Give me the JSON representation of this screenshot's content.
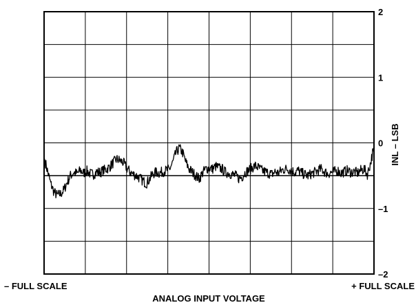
{
  "chart_data": {
    "type": "line",
    "title": "",
    "xlabel": "ANALOG INPUT VOLTAGE",
    "ylabel": "INL – LSB",
    "x_tick_left": "– FULL SCALE",
    "x_tick_right": "+ FULL SCALE",
    "y_ticks": [
      "2",
      "1",
      "0",
      "–1",
      "–2"
    ],
    "ylim": [
      -2,
      2
    ],
    "grid": true,
    "x_divisions": 8,
    "y_divisions": 8,
    "series": [
      {
        "name": "",
        "points": [
          [
            0.0,
            -0.22
          ],
          [
            0.01,
            -0.42
          ],
          [
            0.02,
            -0.62
          ],
          [
            0.03,
            -0.75
          ],
          [
            0.04,
            -0.8
          ],
          [
            0.05,
            -0.78
          ],
          [
            0.06,
            -0.72
          ],
          [
            0.07,
            -0.6
          ],
          [
            0.08,
            -0.5
          ],
          [
            0.09,
            -0.45
          ],
          [
            0.1,
            -0.47
          ],
          [
            0.11,
            -0.42
          ],
          [
            0.12,
            -0.46
          ],
          [
            0.13,
            -0.43
          ],
          [
            0.14,
            -0.47
          ],
          [
            0.15,
            -0.48
          ],
          [
            0.16,
            -0.44
          ],
          [
            0.17,
            -0.45
          ],
          [
            0.18,
            -0.42
          ],
          [
            0.19,
            -0.4
          ],
          [
            0.2,
            -0.36
          ],
          [
            0.21,
            -0.3
          ],
          [
            0.22,
            -0.25
          ],
          [
            0.23,
            -0.27
          ],
          [
            0.24,
            -0.3
          ],
          [
            0.25,
            -0.38
          ],
          [
            0.26,
            -0.44
          ],
          [
            0.27,
            -0.48
          ],
          [
            0.28,
            -0.5
          ],
          [
            0.29,
            -0.54
          ],
          [
            0.3,
            -0.58
          ],
          [
            0.31,
            -0.62
          ],
          [
            0.32,
            -0.55
          ],
          [
            0.33,
            -0.47
          ],
          [
            0.34,
            -0.45
          ],
          [
            0.35,
            -0.46
          ],
          [
            0.36,
            -0.44
          ],
          [
            0.37,
            -0.42
          ],
          [
            0.38,
            -0.4
          ],
          [
            0.39,
            -0.3
          ],
          [
            0.4,
            -0.15
          ],
          [
            0.41,
            -0.08
          ],
          [
            0.42,
            -0.15
          ],
          [
            0.43,
            -0.3
          ],
          [
            0.44,
            -0.4
          ],
          [
            0.45,
            -0.45
          ],
          [
            0.46,
            -0.5
          ],
          [
            0.47,
            -0.55
          ],
          [
            0.48,
            -0.46
          ],
          [
            0.49,
            -0.4
          ],
          [
            0.5,
            -0.38
          ],
          [
            0.51,
            -0.4
          ],
          [
            0.52,
            -0.36
          ],
          [
            0.53,
            -0.38
          ],
          [
            0.54,
            -0.4
          ],
          [
            0.55,
            -0.45
          ],
          [
            0.56,
            -0.46
          ],
          [
            0.57,
            -0.48
          ],
          [
            0.58,
            -0.5
          ],
          [
            0.59,
            -0.54
          ],
          [
            0.6,
            -0.52
          ],
          [
            0.61,
            -0.45
          ],
          [
            0.62,
            -0.42
          ],
          [
            0.63,
            -0.38
          ],
          [
            0.64,
            -0.35
          ],
          [
            0.65,
            -0.38
          ],
          [
            0.66,
            -0.42
          ],
          [
            0.67,
            -0.44
          ],
          [
            0.68,
            -0.46
          ],
          [
            0.69,
            -0.48
          ],
          [
            0.7,
            -0.44
          ],
          [
            0.71,
            -0.46
          ],
          [
            0.72,
            -0.42
          ],
          [
            0.73,
            -0.4
          ],
          [
            0.74,
            -0.4
          ],
          [
            0.75,
            -0.42
          ],
          [
            0.76,
            -0.45
          ],
          [
            0.77,
            -0.42
          ],
          [
            0.78,
            -0.46
          ],
          [
            0.79,
            -0.48
          ],
          [
            0.8,
            -0.5
          ],
          [
            0.81,
            -0.47
          ],
          [
            0.82,
            -0.45
          ],
          [
            0.83,
            -0.42
          ],
          [
            0.84,
            -0.4
          ],
          [
            0.85,
            -0.44
          ],
          [
            0.86,
            -0.47
          ],
          [
            0.87,
            -0.45
          ],
          [
            0.88,
            -0.44
          ],
          [
            0.89,
            -0.42
          ],
          [
            0.9,
            -0.46
          ],
          [
            0.91,
            -0.44
          ],
          [
            0.92,
            -0.42
          ],
          [
            0.93,
            -0.45
          ],
          [
            0.94,
            -0.44
          ],
          [
            0.95,
            -0.46
          ],
          [
            0.96,
            -0.42
          ],
          [
            0.97,
            -0.4
          ],
          [
            0.98,
            -0.48
          ],
          [
            0.99,
            -0.3
          ],
          [
            1.0,
            -0.05
          ]
        ]
      }
    ]
  }
}
